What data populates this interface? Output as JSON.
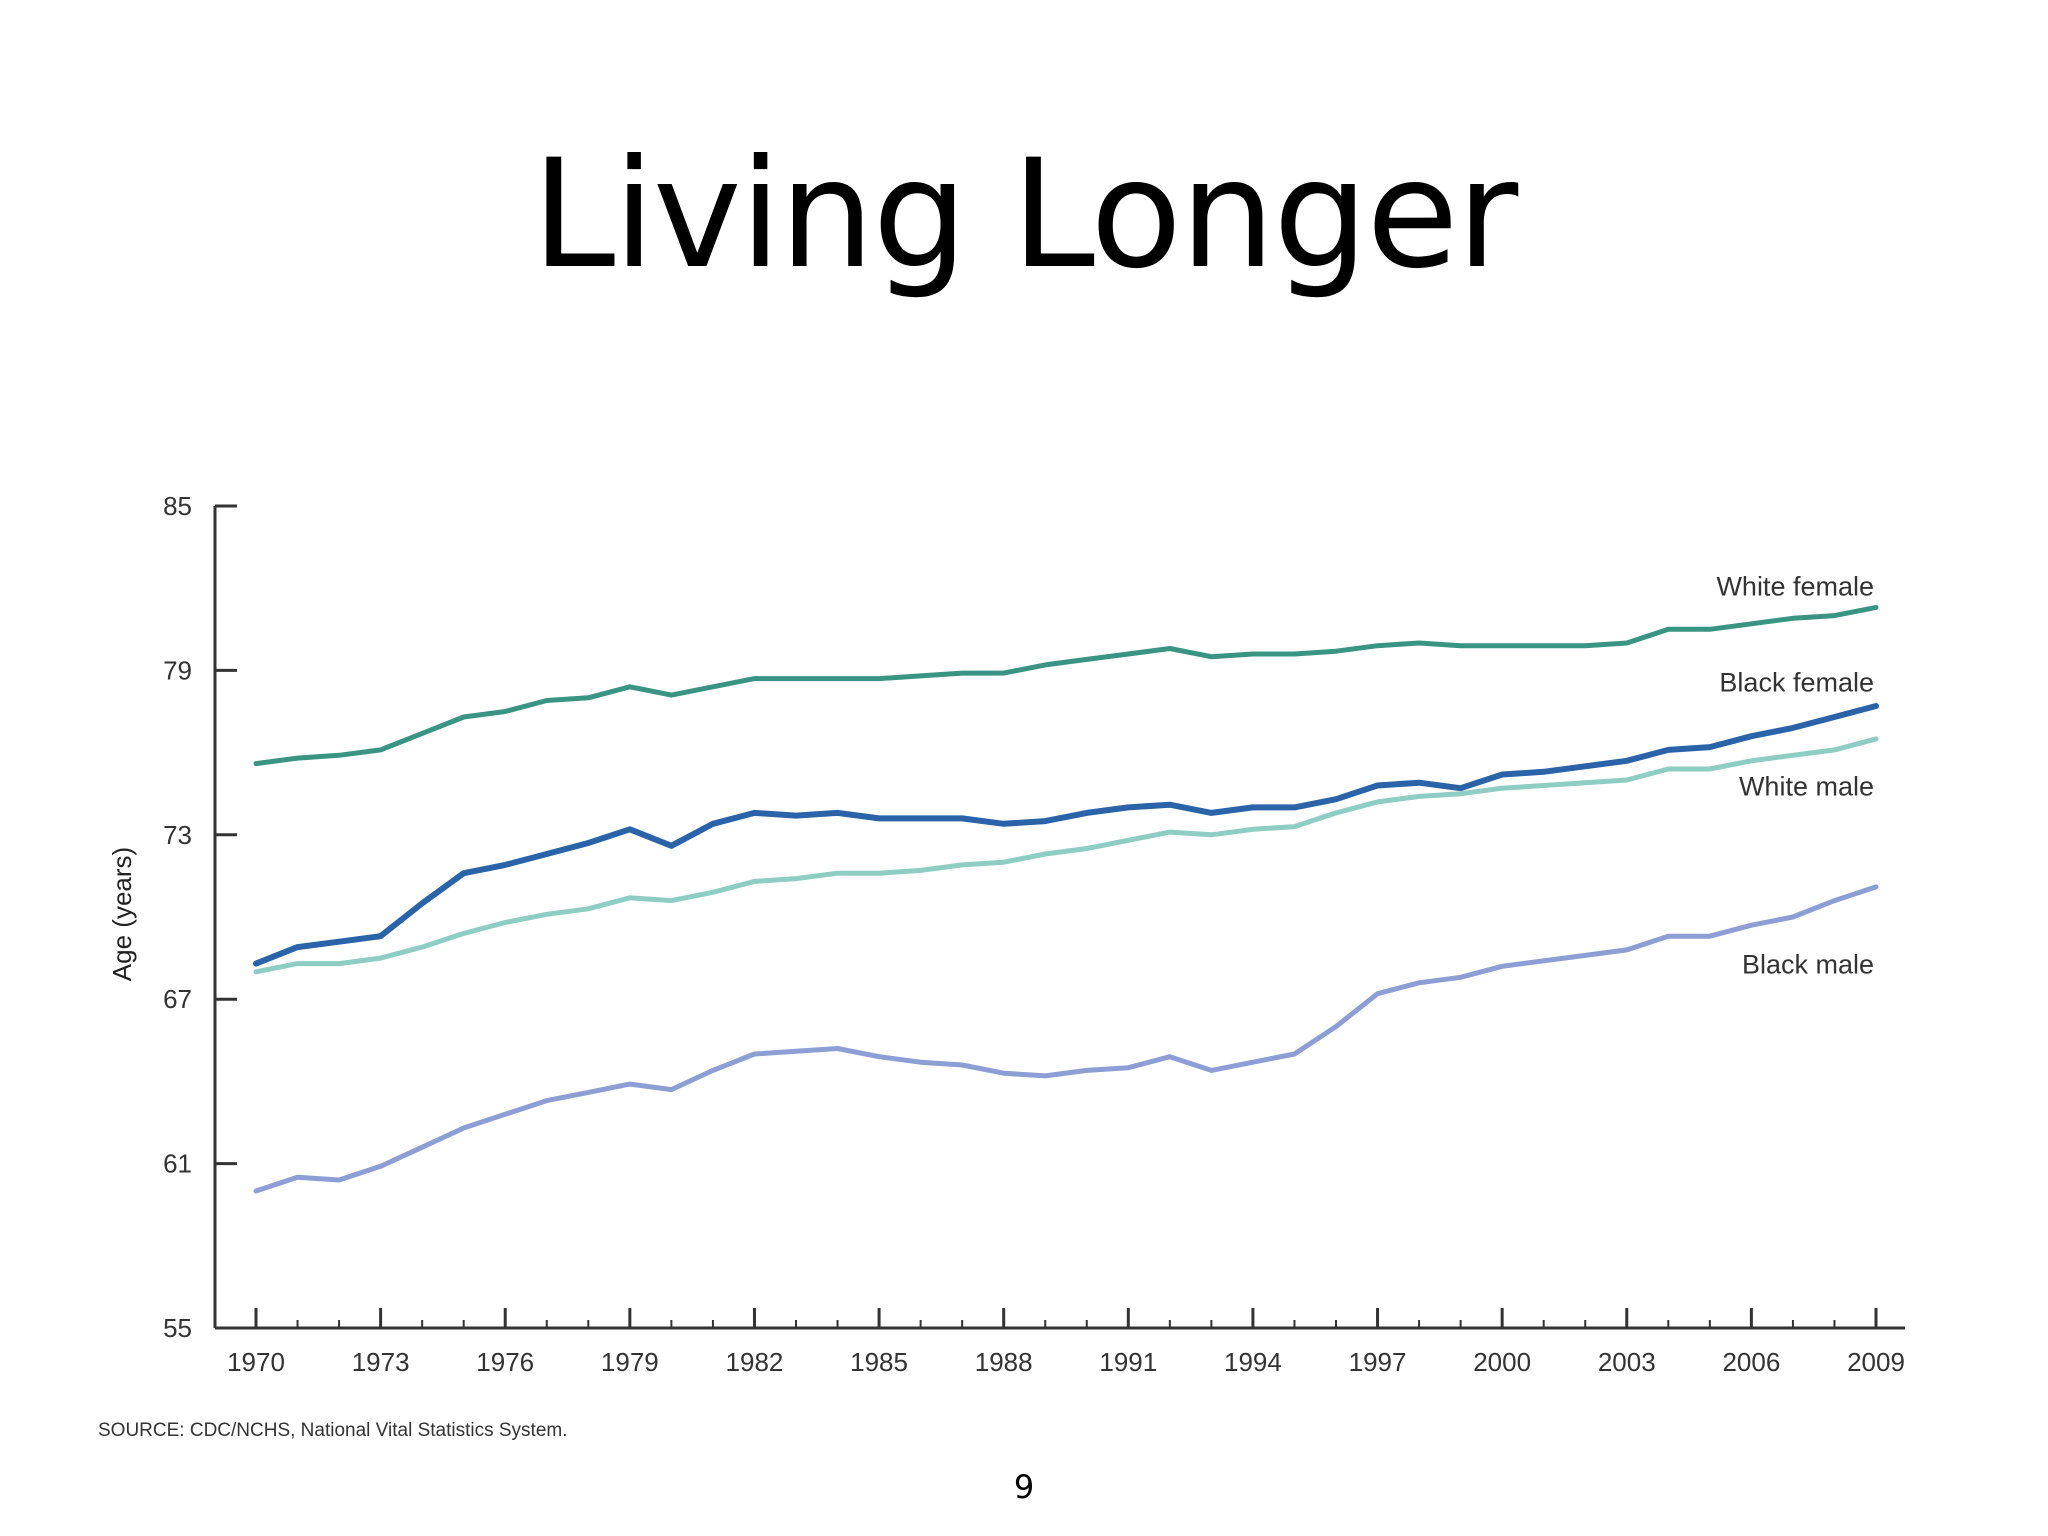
{
  "slide": {
    "title": "Living Longer",
    "source_note": "SOURCE: CDC/NCHS, National Vital Statistics System.",
    "page_number": "9"
  },
  "chart_data": {
    "type": "line",
    "title": "",
    "xlabel": "",
    "ylabel": "Age (years)",
    "xlim": [
      1970,
      2009
    ],
    "ylim": [
      55,
      85
    ],
    "x_ticks": [
      1970,
      1973,
      1976,
      1979,
      1982,
      1985,
      1988,
      1991,
      1994,
      1997,
      2000,
      2003,
      2006,
      2009
    ],
    "y_ticks": [
      55,
      61,
      67,
      73,
      79,
      85
    ],
    "grid": false,
    "legend": "inline labels at right end of each line",
    "x": [
      1970,
      1971,
      1972,
      1973,
      1974,
      1975,
      1976,
      1977,
      1978,
      1979,
      1980,
      1981,
      1982,
      1983,
      1984,
      1985,
      1986,
      1987,
      1988,
      1989,
      1990,
      1991,
      1992,
      1993,
      1994,
      1995,
      1996,
      1997,
      1998,
      1999,
      2000,
      2001,
      2002,
      2003,
      2004,
      2005,
      2006,
      2007,
      2008,
      2009
    ],
    "series": [
      {
        "name": "White female",
        "color": "#3a9483",
        "label_y": 82.1,
        "values": [
          75.6,
          75.8,
          75.9,
          76.1,
          76.7,
          77.3,
          77.5,
          77.9,
          78.0,
          78.4,
          78.1,
          78.4,
          78.7,
          78.7,
          78.7,
          78.7,
          78.8,
          78.9,
          78.9,
          79.2,
          79.4,
          79.6,
          79.8,
          79.5,
          79.6,
          79.6,
          79.7,
          79.9,
          80.0,
          79.9,
          79.9,
          79.9,
          79.9,
          80.0,
          80.5,
          80.5,
          80.7,
          80.9,
          81.0,
          81.3
        ]
      },
      {
        "name": "Black female",
        "color": "#2a63a8",
        "label_y": 78.6,
        "values": [
          68.3,
          68.9,
          69.1,
          69.3,
          70.5,
          71.6,
          71.9,
          72.3,
          72.7,
          73.2,
          72.6,
          73.4,
          73.8,
          73.7,
          73.8,
          73.6,
          73.6,
          73.6,
          73.4,
          73.5,
          73.8,
          74.0,
          74.1,
          73.8,
          74.0,
          74.0,
          74.3,
          74.8,
          74.9,
          74.7,
          75.2,
          75.3,
          75.5,
          75.7,
          76.1,
          76.2,
          76.6,
          76.9,
          77.3,
          77.7
        ]
      },
      {
        "name": "White male",
        "color": "#8ecdc3",
        "label_y": 74.8,
        "values": [
          68.0,
          68.3,
          68.3,
          68.5,
          68.9,
          69.4,
          69.8,
          70.1,
          70.3,
          70.7,
          70.6,
          70.9,
          71.3,
          71.4,
          71.6,
          71.6,
          71.7,
          71.9,
          72.0,
          72.3,
          72.5,
          72.8,
          73.1,
          73.0,
          73.2,
          73.3,
          73.8,
          74.2,
          74.4,
          74.5,
          74.7,
          74.8,
          74.9,
          75.0,
          75.4,
          75.4,
          75.7,
          75.9,
          76.1,
          76.5
        ]
      },
      {
        "name": "Black male",
        "color": "#8c9ed4",
        "label_y": 68.3,
        "values": [
          60.0,
          60.5,
          60.4,
          60.9,
          61.6,
          62.3,
          62.8,
          63.3,
          63.6,
          63.9,
          63.7,
          64.4,
          65.0,
          65.1,
          65.2,
          64.9,
          64.7,
          64.6,
          64.3,
          64.2,
          64.4,
          64.5,
          64.9,
          64.4,
          64.7,
          65.0,
          66.0,
          67.2,
          67.6,
          67.8,
          68.2,
          68.4,
          68.6,
          68.8,
          69.3,
          69.3,
          69.7,
          70.0,
          70.6,
          71.1
        ]
      }
    ]
  }
}
